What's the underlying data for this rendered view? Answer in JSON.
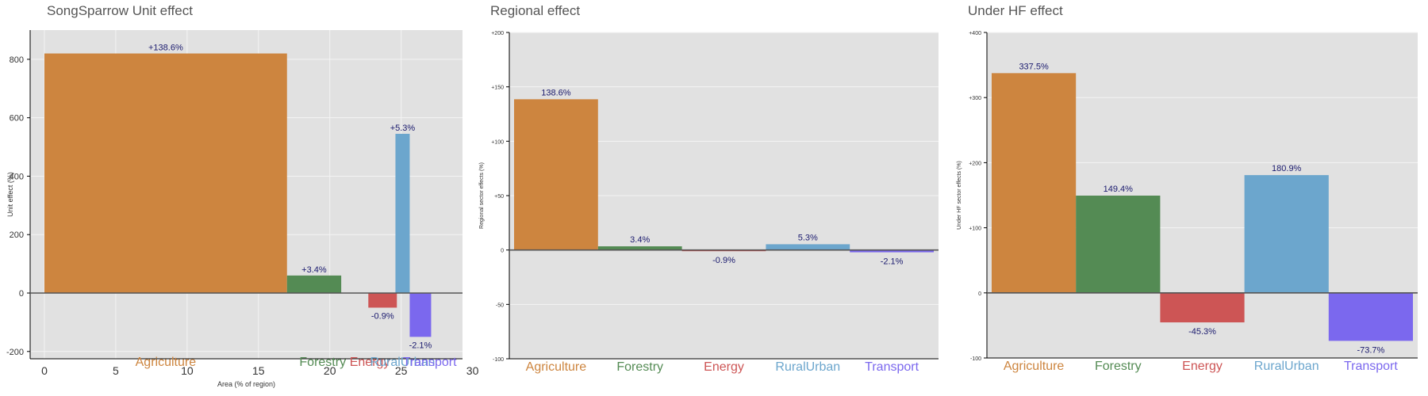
{
  "colors": {
    "Agriculture": "#cd853f",
    "Forestry": "#548b54",
    "Energy": "#cd5555",
    "RuralUrban": "#6ca6cd",
    "Transport": "#7b68ee"
  },
  "chart_data": [
    {
      "type": "bar",
      "title": "SongSparrow Unit effect",
      "xlabel": "Area (% of region)",
      "ylabel": "Unit effect (%)",
      "xlim": [
        -1,
        29.3
      ],
      "ylim": [
        -225,
        900
      ],
      "xticks": [
        0,
        5,
        10,
        15,
        20,
        25,
        30
      ],
      "xtick_labels": [
        "0",
        "5",
        "10",
        "15",
        "20",
        "25",
        "30"
      ],
      "yticks": [
        -200,
        0,
        200,
        400,
        600,
        800
      ],
      "ytick_labels": [
        "-200",
        "0",
        "200",
        "400",
        "600",
        "800"
      ],
      "bars": [
        {
          "category": "Agriculture",
          "x_start": 0,
          "width": 17,
          "value": 820,
          "label": "+138.6%"
        },
        {
          "category": "Forestry",
          "x_start": 17,
          "width": 3.8,
          "value": 60,
          "label": "+3.4%"
        },
        {
          "category": "Energy",
          "x_start": 22.7,
          "width": 2,
          "value": -50,
          "label": "-0.9%"
        },
        {
          "category": "RuralUrban",
          "x_start": 24.6,
          "width": 1,
          "value": 545,
          "label": "+5.3%"
        },
        {
          "category": "Transport",
          "x_start": 25.6,
          "width": 1.5,
          "value": -150,
          "label": "-2.1%"
        }
      ],
      "category_labels": [
        {
          "text": "Agriculture",
          "x": 8.5
        },
        {
          "text": "Forestry",
          "x": 19.5
        },
        {
          "text": "Energy",
          "x": 22.8
        },
        {
          "text": "RuralUrban",
          "x": 25.1
        },
        {
          "text": "Transport",
          "x": 27
        }
      ]
    },
    {
      "type": "bar",
      "title": "Regional effect",
      "xlabel": "",
      "ylabel": "Regional sector effects (%)",
      "ylim": [
        -100,
        200
      ],
      "yticks": [
        -100,
        -50,
        0,
        50,
        100,
        150,
        200
      ],
      "ytick_labels": [
        "-100",
        "-50",
        "0",
        "+50",
        "+100",
        "+150",
        "+200"
      ],
      "categories": [
        "Agriculture",
        "Forestry",
        "Energy",
        "RuralUrban",
        "Transport"
      ],
      "values": [
        138.6,
        3.4,
        -0.9,
        5.3,
        -2.1
      ],
      "labels": [
        "138.6%",
        "3.4%",
        "-0.9%",
        "5.3%",
        "-2.1%"
      ]
    },
    {
      "type": "bar",
      "title": "Under HF effect",
      "xlabel": "",
      "ylabel": "Under HF sector effects (%)",
      "ylim": [
        -100,
        400
      ],
      "yticks": [
        -100,
        0,
        100,
        200,
        300,
        400
      ],
      "ytick_labels": [
        "-100",
        "0",
        "+100",
        "+200",
        "+300",
        "+400"
      ],
      "categories": [
        "Agriculture",
        "Forestry",
        "Energy",
        "RuralUrban",
        "Transport"
      ],
      "values": [
        337.5,
        149.4,
        -45.3,
        180.9,
        -73.7
      ],
      "labels": [
        "337.5%",
        "149.4%",
        "-45.3%",
        "180.9%",
        "-73.7%"
      ]
    }
  ]
}
